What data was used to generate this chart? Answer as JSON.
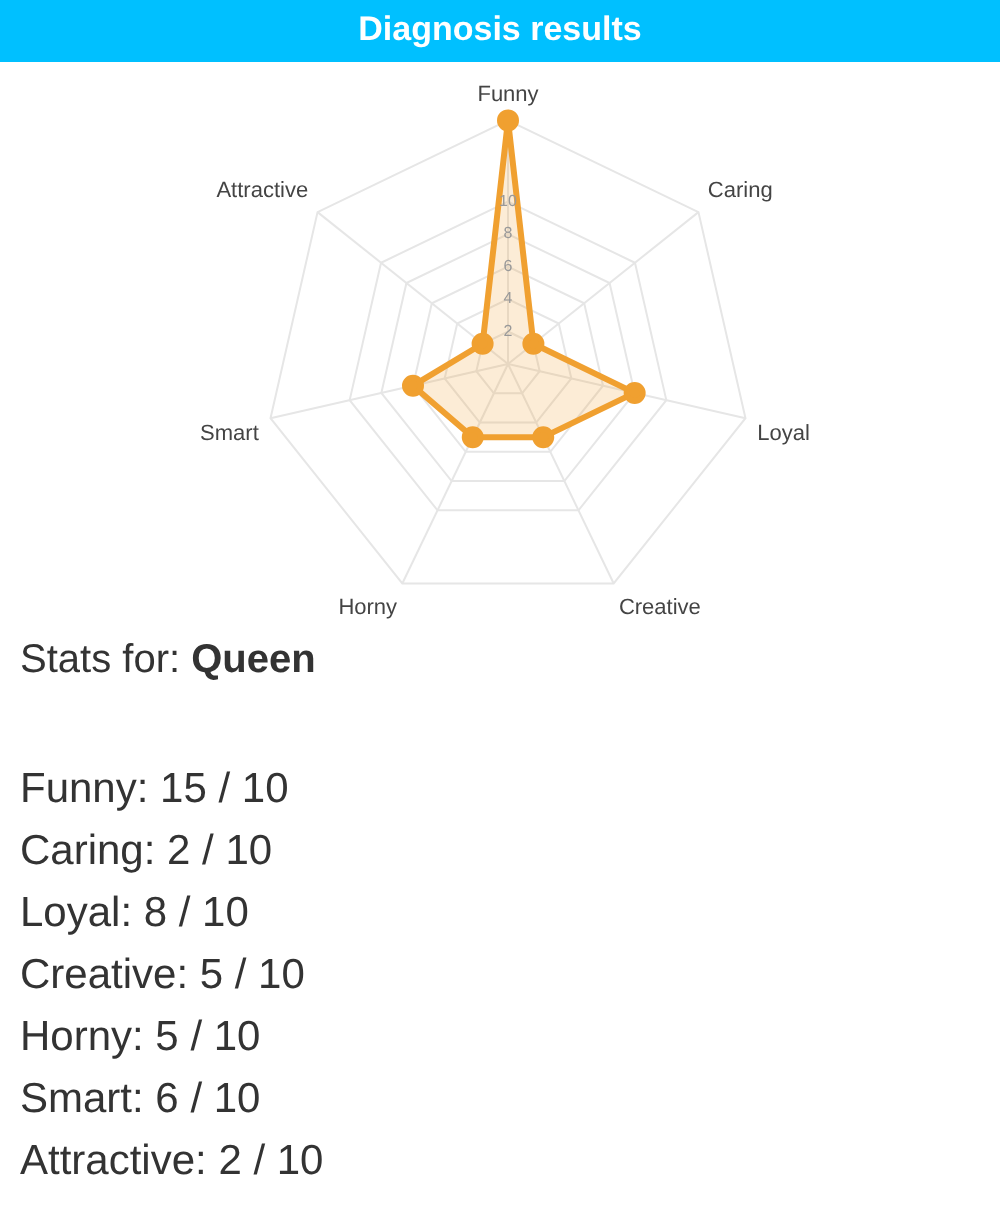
{
  "chart_data": {
    "type": "radar",
    "title": "Diagnosis results",
    "categories": [
      "Funny",
      "Caring",
      "Loyal",
      "Creative",
      "Horny",
      "Smart",
      "Attractive"
    ],
    "series": [
      {
        "color": "#f0a030",
        "values": [
          15,
          2,
          8,
          5,
          5,
          6,
          2
        ]
      }
    ],
    "ylim": [
      0,
      15
    ],
    "yticks": [
      2,
      4,
      6,
      8,
      10
    ],
    "grid": true,
    "marker": "circle",
    "annotations": [
      "Stats for: Queen",
      "Funny: 15 / 10",
      "Caring: 2 / 10",
      "Loyal: 8 / 10",
      "Creative: 5 / 10",
      "Horny: 5 / 10",
      "Smart: 6 / 10",
      "Attractive: 2 / 10"
    ]
  }
}
